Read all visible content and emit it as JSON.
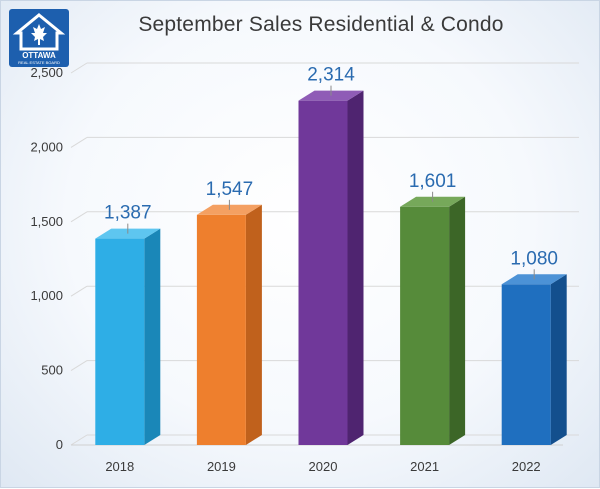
{
  "logo": {
    "name": "OTTAWA",
    "subtitle": "REAL ESTATE BOARD"
  },
  "chart_data": {
    "type": "bar",
    "title": "September Sales Residential & Condo",
    "xlabel": "",
    "ylabel": "",
    "categories": [
      "2018",
      "2019",
      "2020",
      "2021",
      "2022"
    ],
    "values": [
      1387,
      1547,
      2314,
      1601,
      1080
    ],
    "data_labels": [
      "1,387",
      "1,547",
      "2,314",
      "1,601",
      "1,080"
    ],
    "ylim": [
      0,
      2500
    ],
    "yticks": [
      0,
      500,
      1000,
      1500,
      2000,
      2500
    ],
    "ytick_labels": [
      "0",
      "500",
      "1,000",
      "1,500",
      "2,000",
      "2,500"
    ],
    "grid": true,
    "style": "3d-column",
    "colors": [
      {
        "front": "#2eaee6",
        "side": "#1a87b8",
        "top": "#5ec6f0"
      },
      {
        "front": "#ee7f2d",
        "side": "#c0611c",
        "top": "#f4a062"
      },
      {
        "front": "#70389a",
        "side": "#4f2470",
        "top": "#8f5cb6"
      },
      {
        "front": "#568b3a",
        "side": "#3c6627",
        "top": "#76a85a"
      },
      {
        "front": "#1f6fbf",
        "side": "#134f8d",
        "top": "#4c92d6"
      }
    ],
    "data_label_color": "#2a6bb0",
    "gridline_color": "#d9d9d9"
  }
}
